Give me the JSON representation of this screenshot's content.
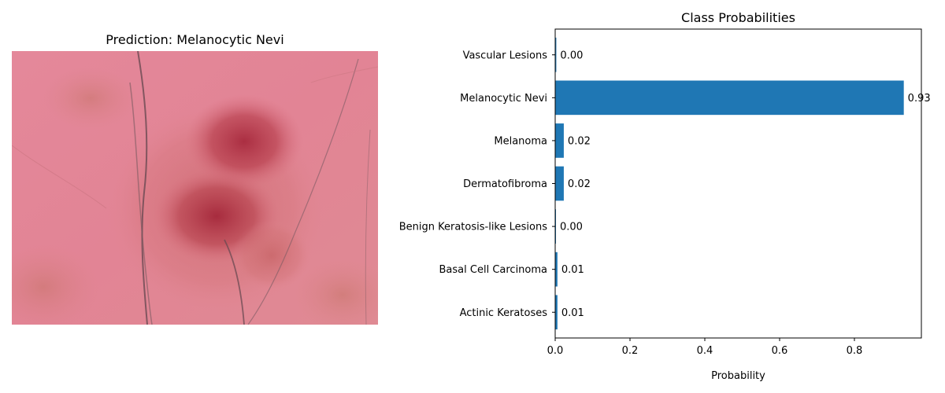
{
  "left_panel": {
    "title": "Prediction: Melanocytic Nevi",
    "image_subject": "dermoscopy-lesion"
  },
  "colors": {
    "bar": "#1f77b4",
    "axis": "#000000"
  },
  "chart_data": {
    "type": "bar",
    "orientation": "horizontal",
    "title": "Class Probabilities",
    "xlabel": "Probability",
    "ylabel": "",
    "xlim": [
      0,
      0.979
    ],
    "xticks": [
      0.0,
      0.2,
      0.4,
      0.6,
      0.8
    ],
    "xtick_labels": [
      "0.0",
      "0.2",
      "0.4",
      "0.6",
      "0.8"
    ],
    "grid": false,
    "categories": [
      "Actinic Keratoses",
      "Basal Cell Carcinoma",
      "Benign Keratosis-like Lesions",
      "Dermatofibroma",
      "Melanoma",
      "Melanocytic Nevi",
      "Vascular Lesions"
    ],
    "values": [
      0.006,
      0.006,
      0.002,
      0.023,
      0.023,
      0.932,
      0.003
    ],
    "value_labels": [
      "0.01",
      "0.01",
      "0.00",
      "0.02",
      "0.02",
      "0.93",
      "0.00"
    ]
  }
}
